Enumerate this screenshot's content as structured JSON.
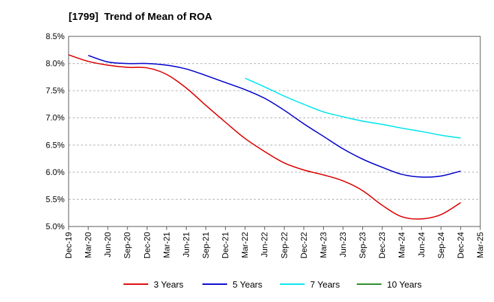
{
  "chart_data": {
    "type": "line",
    "title": "[1799]  Trend of Mean of ROA",
    "xlabel": "",
    "ylabel": "",
    "categories": [
      "Dec-19",
      "Mar-20",
      "Jun-20",
      "Sep-20",
      "Dec-20",
      "Mar-21",
      "Jun-21",
      "Sep-21",
      "Dec-21",
      "Mar-22",
      "Jun-22",
      "Sep-22",
      "Dec-22",
      "Mar-23",
      "Jun-23",
      "Sep-23",
      "Dec-23",
      "Mar-24",
      "Jun-24",
      "Sep-24",
      "Dec-24",
      "Mar-25"
    ],
    "y_ticks": [
      "5.0%",
      "5.5%",
      "6.0%",
      "6.5%",
      "7.0%",
      "7.5%",
      "8.0%",
      "8.5%"
    ],
    "ylim": [
      5.0,
      8.5
    ],
    "grid": "horizontal dashed",
    "legend_position": "bottom",
    "series": [
      {
        "name": "3 Years",
        "color": "#dd0000",
        "values": [
          8.16,
          8.04,
          7.97,
          7.93,
          7.92,
          7.8,
          7.55,
          7.23,
          6.92,
          6.62,
          6.38,
          6.17,
          6.04,
          5.95,
          5.84,
          5.66,
          5.39,
          5.18,
          5.14,
          5.22,
          5.44,
          null
        ]
      },
      {
        "name": "5 Years",
        "color": "#0000cc",
        "values": [
          null,
          8.15,
          8.03,
          8.0,
          8.0,
          7.97,
          7.9,
          7.78,
          7.65,
          7.52,
          7.36,
          7.14,
          6.89,
          6.66,
          6.43,
          6.24,
          6.09,
          5.96,
          5.91,
          5.93,
          6.02,
          null
        ]
      },
      {
        "name": "7 Years",
        "color": "#00e5ee",
        "values": [
          null,
          null,
          null,
          null,
          null,
          null,
          null,
          null,
          null,
          7.73,
          7.57,
          7.4,
          7.25,
          7.11,
          7.02,
          6.94,
          6.88,
          6.81,
          6.75,
          6.68,
          6.63,
          null
        ]
      },
      {
        "name": "10 Years",
        "color": "#228822",
        "values": [
          null,
          null,
          null,
          null,
          null,
          null,
          null,
          null,
          null,
          null,
          null,
          null,
          null,
          null,
          null,
          null,
          null,
          null,
          null,
          null,
          null,
          null
        ]
      }
    ]
  }
}
